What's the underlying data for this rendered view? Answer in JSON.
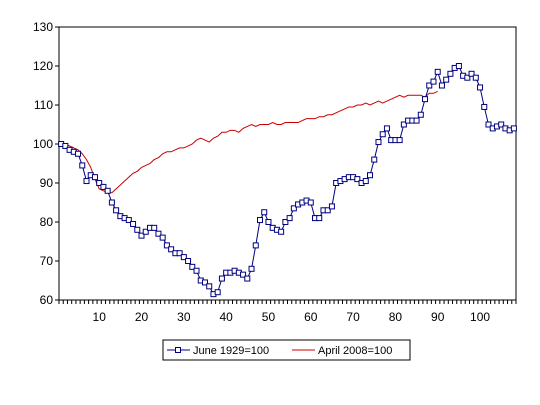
{
  "chart_data": {
    "type": "line",
    "title": "",
    "xlabel": "",
    "ylabel": "",
    "xlim": [
      1,
      108
    ],
    "ylim": [
      60,
      130
    ],
    "x_ticks": [
      10,
      20,
      30,
      40,
      50,
      60,
      70,
      80,
      90,
      100
    ],
    "y_ticks": [
      60,
      70,
      80,
      90,
      100,
      110,
      120,
      130
    ],
    "grid": false,
    "legend_position": "bottom-center",
    "series": [
      {
        "name": "June 1929=100",
        "color": "#000080",
        "marker": "square",
        "x": [
          1,
          2,
          3,
          4,
          5,
          6,
          7,
          8,
          9,
          10,
          11,
          12,
          13,
          14,
          15,
          16,
          17,
          18,
          19,
          20,
          21,
          22,
          23,
          24,
          25,
          26,
          27,
          28,
          29,
          30,
          31,
          32,
          33,
          34,
          35,
          36,
          37,
          38,
          39,
          40,
          41,
          42,
          43,
          44,
          45,
          46,
          47,
          48,
          49,
          50,
          51,
          52,
          53,
          54,
          55,
          56,
          57,
          58,
          59,
          60,
          61,
          62,
          63,
          64,
          65,
          66,
          67,
          68,
          69,
          70,
          71,
          72,
          73,
          74,
          75,
          76,
          77,
          78,
          79,
          80,
          81,
          82,
          83,
          84,
          85,
          86,
          87,
          88,
          89,
          90,
          91,
          92,
          93,
          94,
          95,
          96,
          97,
          98,
          99,
          100,
          101,
          102,
          103,
          104,
          105,
          106,
          107,
          108
        ],
        "values": [
          100,
          99.5,
          98.5,
          98,
          97.5,
          94.5,
          90.5,
          92,
          91.5,
          90,
          89,
          88,
          85,
          83,
          81.5,
          81,
          80.5,
          79.5,
          78,
          76.5,
          77.5,
          78.5,
          78.5,
          77,
          76,
          74,
          73,
          72,
          72,
          71,
          70,
          68.5,
          67.5,
          65,
          64.5,
          63.5,
          61.5,
          62,
          65.5,
          67,
          67,
          67.5,
          67,
          66.5,
          65.5,
          68,
          74,
          80.5,
          82.5,
          80,
          78.5,
          78,
          77.5,
          80,
          81,
          83.5,
          84.5,
          85,
          85.5,
          85,
          81,
          81,
          83,
          83,
          84,
          90,
          90.5,
          91,
          91.5,
          91.5,
          91,
          90,
          90.5,
          92,
          96,
          100.5,
          102.5,
          104,
          101,
          101,
          101,
          105,
          106,
          106,
          106,
          107.5,
          111.5,
          115,
          116,
          118.5,
          115,
          116.5,
          118,
          119.5,
          120,
          117.5,
          117,
          118,
          117,
          114.5,
          109.5,
          105,
          104,
          104.5,
          105,
          104,
          103.5,
          104
        ]
      },
      {
        "name": "April 2008=100",
        "color": "#cc0000",
        "marker": "none",
        "x": [
          1,
          2,
          3,
          4,
          5,
          6,
          7,
          8,
          9,
          10,
          11,
          12,
          13,
          14,
          15,
          16,
          17,
          18,
          19,
          20,
          21,
          22,
          23,
          24,
          25,
          26,
          27,
          28,
          29,
          30,
          31,
          32,
          33,
          34,
          35,
          36,
          37,
          38,
          39,
          40,
          41,
          42,
          43,
          44,
          45,
          46,
          47,
          48,
          49,
          50,
          51,
          52,
          53,
          54,
          55,
          56,
          57,
          58,
          59,
          60,
          61,
          62,
          63,
          64,
          65,
          66,
          67,
          68,
          69,
          70,
          71,
          72,
          73,
          74,
          75,
          76,
          77,
          78,
          79,
          80,
          81,
          82,
          83,
          84,
          85,
          86,
          87,
          88,
          89,
          90
        ],
        "values": [
          100.5,
          100,
          99.5,
          99,
          98.5,
          97.5,
          96,
          94,
          91,
          88.5,
          88,
          87.5,
          87.5,
          88.5,
          89.5,
          90.5,
          91.5,
          92.5,
          93,
          94,
          94.5,
          95,
          96,
          96.5,
          97.5,
          98,
          98,
          98.5,
          99,
          99,
          99.5,
          100,
          101,
          101.5,
          101,
          100.5,
          101.5,
          102,
          103,
          103,
          103.5,
          103.5,
          103,
          104,
          104.5,
          105,
          104.5,
          105,
          105,
          105,
          105.5,
          105,
          105,
          105.5,
          105.5,
          105.5,
          105.5,
          106,
          106.5,
          106.5,
          106.5,
          107,
          107,
          107.5,
          107.5,
          108,
          108.5,
          109,
          109.5,
          109.5,
          110,
          110,
          110.5,
          110,
          110.5,
          111,
          110.5,
          111,
          111.5,
          112,
          112.5,
          112,
          112.5,
          112.5,
          112.5,
          112.5,
          112,
          113,
          113,
          113.5
        ]
      }
    ]
  }
}
